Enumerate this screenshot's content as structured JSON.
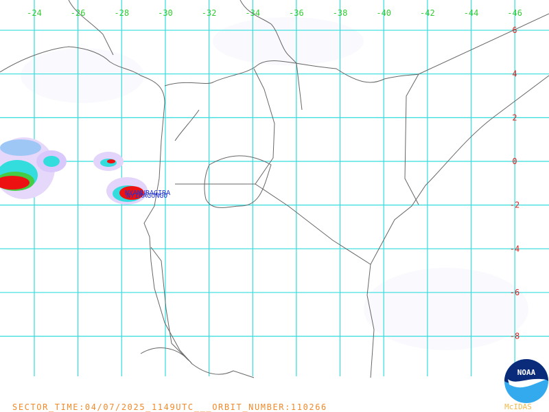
{
  "longitude_labels": [
    -24,
    -26,
    -28,
    -30,
    -32,
    -34,
    -36,
    -38,
    -40,
    -42,
    -44,
    -46
  ],
  "latitude_labels": [
    6,
    4,
    2,
    0,
    -2,
    -4,
    -6,
    -8
  ],
  "volcanoes": [
    "NYAMURAGIRA",
    "NYIRAGONGO"
  ],
  "footer": {
    "sector_info": "SECTOR_TIME:04/07/2025_1149UTC___ORBIT_NUMBER:110266",
    "software": "McIDAS"
  },
  "logo": "NOAA"
}
